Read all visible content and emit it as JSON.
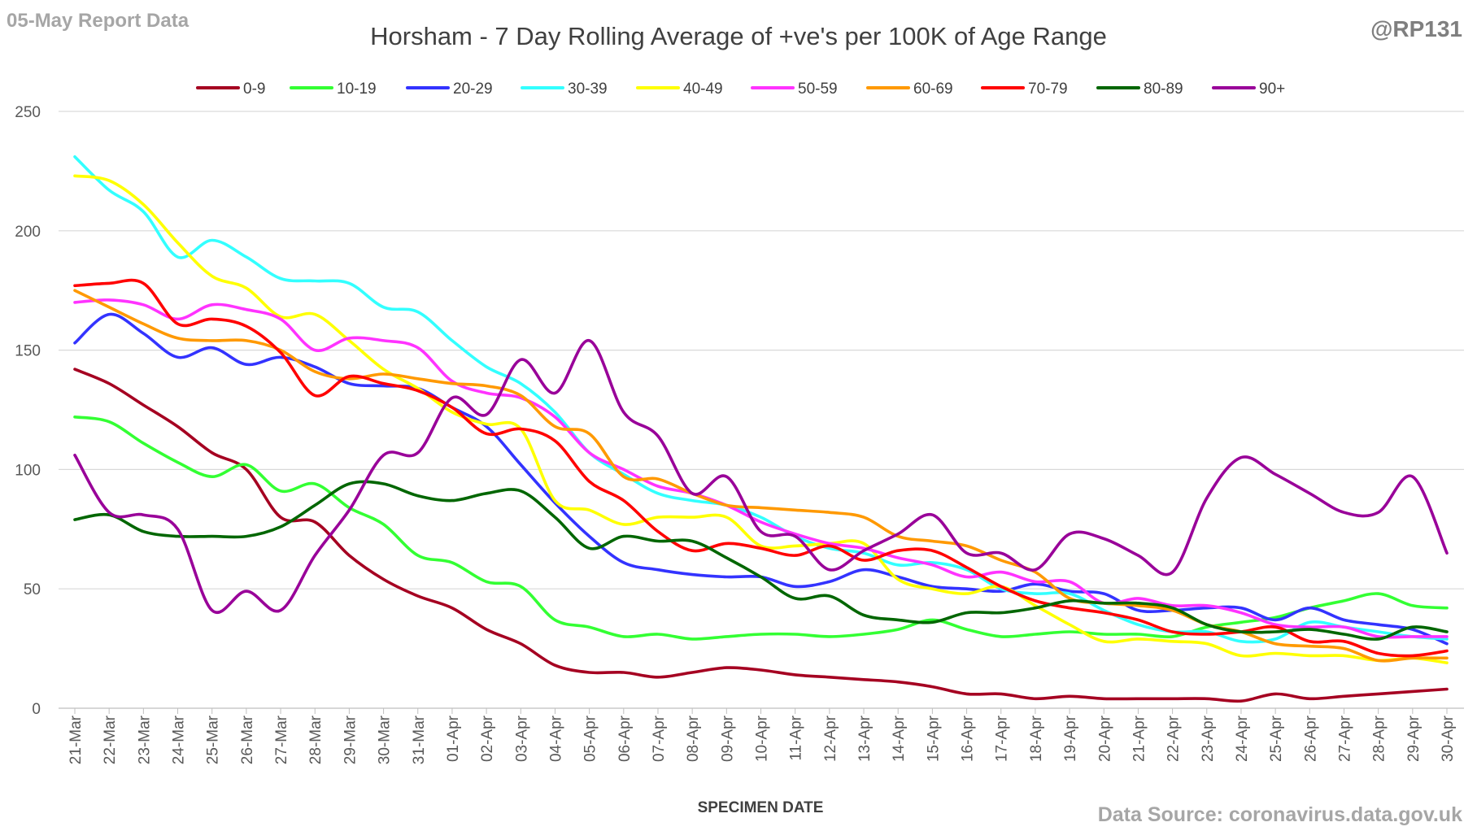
{
  "header": {
    "report_label": "05-May Report Data",
    "handle": "@RP131"
  },
  "footer": {
    "source": "Data Source: coronavirus.data.gov.uk"
  },
  "chart_data": {
    "type": "line",
    "title": "Horsham - 7 Day Rolling Average of +ve's per 100K of Age Range",
    "xlabel": "SPECIMEN DATE",
    "ylabel": "",
    "ylim": [
      0,
      250
    ],
    "yticks": [
      0,
      50,
      100,
      150,
      200,
      250
    ],
    "grid": "horizontal",
    "legend_position": "top",
    "categories": [
      "21-Mar",
      "22-Mar",
      "23-Mar",
      "24-Mar",
      "25-Mar",
      "26-Mar",
      "27-Mar",
      "28-Mar",
      "29-Mar",
      "30-Mar",
      "31-Mar",
      "01-Apr",
      "02-Apr",
      "03-Apr",
      "04-Apr",
      "05-Apr",
      "06-Apr",
      "07-Apr",
      "08-Apr",
      "09-Apr",
      "10-Apr",
      "11-Apr",
      "12-Apr",
      "13-Apr",
      "14-Apr",
      "15-Apr",
      "16-Apr",
      "17-Apr",
      "18-Apr",
      "19-Apr",
      "20-Apr",
      "21-Apr",
      "22-Apr",
      "23-Apr",
      "24-Apr",
      "25-Apr",
      "26-Apr",
      "27-Apr",
      "28-Apr",
      "29-Apr",
      "30-Apr"
    ],
    "series": [
      {
        "name": "0-9",
        "color": "#a50021",
        "values": [
          142,
          136,
          127,
          118,
          107,
          100,
          80,
          78,
          64,
          54,
          47,
          42,
          33,
          27,
          18,
          15,
          15,
          13,
          15,
          17,
          16,
          14,
          13,
          12,
          11,
          9,
          6,
          6,
          4,
          5,
          4,
          4,
          4,
          4,
          3,
          6,
          4,
          5,
          6,
          7,
          8
        ]
      },
      {
        "name": "10-19",
        "color": "#33ff33",
        "values": [
          122,
          120,
          111,
          103,
          97,
          102,
          91,
          94,
          84,
          77,
          64,
          61,
          53,
          51,
          37,
          34,
          30,
          31,
          29,
          30,
          31,
          31,
          30,
          31,
          33,
          37,
          33,
          30,
          31,
          32,
          31,
          31,
          30,
          34,
          36,
          38,
          42,
          45,
          48,
          43,
          42
        ]
      },
      {
        "name": "20-29",
        "color": "#3333ff",
        "values": [
          153,
          165,
          157,
          147,
          151,
          144,
          147,
          143,
          136,
          135,
          134,
          126,
          118,
          102,
          86,
          72,
          61,
          58,
          56,
          55,
          55,
          51,
          53,
          58,
          55,
          51,
          50,
          49,
          52,
          49,
          48,
          41,
          41,
          42,
          42,
          37,
          42,
          37,
          35,
          33,
          27
        ]
      },
      {
        "name": "30-39",
        "color": "#33ffff",
        "values": [
          231,
          217,
          208,
          189,
          196,
          189,
          180,
          179,
          178,
          168,
          166,
          154,
          143,
          136,
          124,
          107,
          98,
          90,
          87,
          85,
          80,
          72,
          67,
          65,
          60,
          61,
          58,
          50,
          48,
          48,
          41,
          35,
          32,
          32,
          28,
          29,
          36,
          34,
          32,
          30,
          29
        ]
      },
      {
        "name": "40-49",
        "color": "#ffff00",
        "values": [
          223,
          221,
          211,
          195,
          181,
          176,
          164,
          165,
          154,
          142,
          134,
          124,
          119,
          117,
          87,
          83,
          77,
          80,
          80,
          80,
          68,
          68,
          69,
          69,
          54,
          50,
          48,
          51,
          43,
          35,
          28,
          29,
          28,
          27,
          22,
          23,
          22,
          22,
          20,
          21,
          19
        ]
      },
      {
        "name": "50-59",
        "color": "#ff33ff",
        "values": [
          170,
          171,
          169,
          163,
          169,
          167,
          163,
          150,
          155,
          154,
          151,
          137,
          132,
          130,
          122,
          107,
          100,
          93,
          90,
          85,
          78,
          73,
          69,
          67,
          63,
          60,
          55,
          57,
          53,
          53,
          44,
          46,
          43,
          43,
          40,
          35,
          34,
          34,
          30,
          30,
          30
        ]
      },
      {
        "name": "60-69",
        "color": "#ff9900",
        "values": [
          175,
          168,
          161,
          155,
          154,
          154,
          150,
          141,
          138,
          140,
          138,
          136,
          135,
          131,
          118,
          115,
          97,
          96,
          90,
          85,
          84,
          83,
          82,
          80,
          72,
          70,
          68,
          62,
          57,
          46,
          44,
          43,
          41,
          35,
          32,
          27,
          26,
          25,
          20,
          21,
          21
        ]
      },
      {
        "name": "70-79",
        "color": "#ff0000",
        "values": [
          177,
          178,
          178,
          161,
          163,
          160,
          149,
          131,
          139,
          136,
          133,
          126,
          115,
          117,
          112,
          95,
          87,
          74,
          66,
          69,
          67,
          64,
          68,
          62,
          66,
          66,
          59,
          51,
          45,
          42,
          40,
          37,
          32,
          31,
          32,
          34,
          28,
          28,
          23,
          22,
          24
        ]
      },
      {
        "name": "80-89",
        "color": "#006600",
        "values": [
          79,
          81,
          74,
          72,
          72,
          72,
          76,
          85,
          94,
          94,
          89,
          87,
          90,
          91,
          80,
          67,
          72,
          70,
          70,
          63,
          55,
          46,
          47,
          39,
          37,
          36,
          40,
          40,
          42,
          45,
          44,
          44,
          42,
          35,
          32,
          32,
          33,
          31,
          29,
          34,
          32
        ]
      },
      {
        "name": "90+",
        "color": "#990099",
        "values": [
          106,
          82,
          81,
          75,
          41,
          49,
          41,
          64,
          83,
          106,
          107,
          130,
          123,
          146,
          132,
          154,
          124,
          114,
          90,
          97,
          74,
          72,
          58,
          66,
          73,
          81,
          65,
          65,
          58,
          73,
          71,
          64,
          57,
          88,
          105,
          98,
          90,
          82,
          82,
          97,
          65
        ]
      }
    ]
  }
}
